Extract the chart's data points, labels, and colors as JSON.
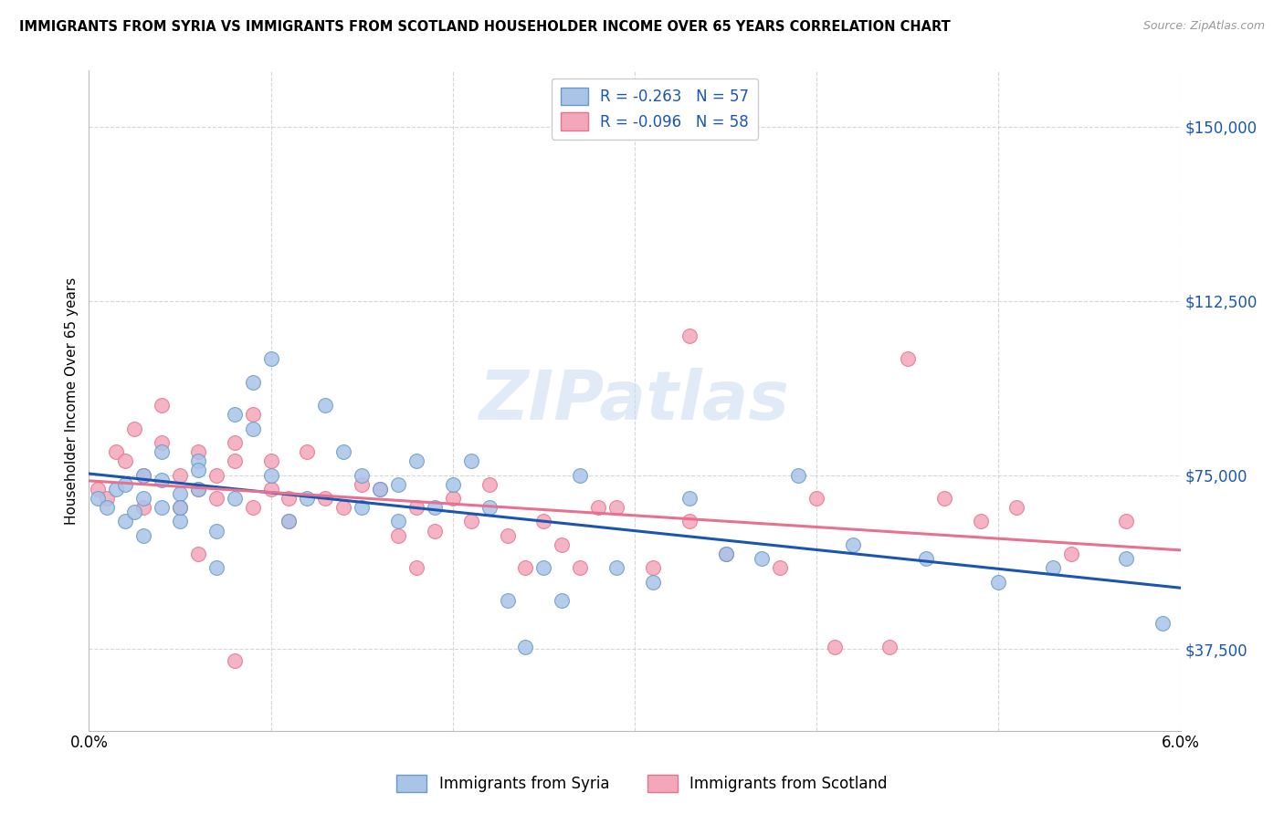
{
  "title": "IMMIGRANTS FROM SYRIA VS IMMIGRANTS FROM SCOTLAND HOUSEHOLDER INCOME OVER 65 YEARS CORRELATION CHART",
  "source": "Source: ZipAtlas.com",
  "ylabel": "Householder Income Over 65 years",
  "xlim": [
    0.0,
    0.06
  ],
  "ylim": [
    20000,
    162000
  ],
  "yticks": [
    37500,
    75000,
    112500,
    150000
  ],
  "ytick_labels": [
    "$37,500",
    "$75,000",
    "$112,500",
    "$150,000"
  ],
  "watermark": "ZIPatlas",
  "legend_r_syria": "-0.263",
  "legend_n_syria": "57",
  "legend_r_scotland": "-0.096",
  "legend_n_scotland": "58",
  "syria_color": "#aac4e8",
  "scotland_color": "#f4a7b9",
  "syria_edge_color": "#6699cc",
  "scotland_edge_color": "#e87090",
  "syria_line_color": "#1a56b0",
  "scotland_line_color": "#e87090",
  "text_color_blue": "#1a56b0",
  "syria_x": [
    0.0005,
    0.001,
    0.0015,
    0.002,
    0.002,
    0.0025,
    0.003,
    0.003,
    0.003,
    0.004,
    0.004,
    0.004,
    0.005,
    0.005,
    0.005,
    0.006,
    0.006,
    0.006,
    0.007,
    0.007,
    0.008,
    0.008,
    0.009,
    0.009,
    0.01,
    0.01,
    0.011,
    0.012,
    0.013,
    0.014,
    0.015,
    0.015,
    0.016,
    0.017,
    0.017,
    0.018,
    0.019,
    0.02,
    0.021,
    0.022,
    0.023,
    0.024,
    0.025,
    0.026,
    0.027,
    0.029,
    0.031,
    0.033,
    0.035,
    0.037,
    0.039,
    0.042,
    0.046,
    0.05,
    0.053,
    0.057,
    0.059
  ],
  "syria_y": [
    70000,
    68000,
    72000,
    65000,
    73000,
    67000,
    75000,
    70000,
    62000,
    68000,
    74000,
    80000,
    65000,
    71000,
    68000,
    78000,
    72000,
    76000,
    63000,
    55000,
    88000,
    70000,
    95000,
    85000,
    100000,
    75000,
    65000,
    70000,
    90000,
    80000,
    68000,
    75000,
    72000,
    65000,
    73000,
    78000,
    68000,
    73000,
    78000,
    68000,
    48000,
    38000,
    55000,
    48000,
    75000,
    55000,
    52000,
    70000,
    58000,
    57000,
    75000,
    60000,
    57000,
    52000,
    55000,
    57000,
    43000
  ],
  "scotland_x": [
    0.0005,
    0.001,
    0.0015,
    0.002,
    0.0025,
    0.003,
    0.003,
    0.004,
    0.004,
    0.005,
    0.005,
    0.006,
    0.006,
    0.007,
    0.007,
    0.008,
    0.008,
    0.009,
    0.009,
    0.01,
    0.01,
    0.011,
    0.012,
    0.013,
    0.014,
    0.015,
    0.016,
    0.017,
    0.018,
    0.019,
    0.02,
    0.021,
    0.022,
    0.023,
    0.024,
    0.025,
    0.026,
    0.027,
    0.029,
    0.031,
    0.033,
    0.035,
    0.038,
    0.041,
    0.044,
    0.047,
    0.049,
    0.051,
    0.054,
    0.057,
    0.04,
    0.028,
    0.018,
    0.011,
    0.008,
    0.006,
    0.045,
    0.033
  ],
  "scotland_y": [
    72000,
    70000,
    80000,
    78000,
    85000,
    68000,
    75000,
    82000,
    90000,
    68000,
    75000,
    72000,
    80000,
    70000,
    75000,
    82000,
    78000,
    68000,
    88000,
    72000,
    78000,
    65000,
    80000,
    70000,
    68000,
    73000,
    72000,
    62000,
    55000,
    63000,
    70000,
    65000,
    73000,
    62000,
    55000,
    65000,
    60000,
    55000,
    68000,
    55000,
    65000,
    58000,
    55000,
    38000,
    38000,
    70000,
    65000,
    68000,
    58000,
    65000,
    70000,
    68000,
    68000,
    70000,
    35000,
    58000,
    100000,
    105000
  ]
}
